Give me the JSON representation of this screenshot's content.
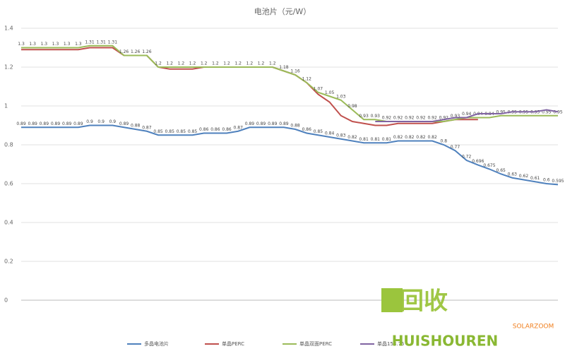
{
  "chart_data": {
    "type": "line",
    "title": "电池片（元/W）",
    "categories": [
      null,
      null,
      null,
      null,
      null,
      null,
      null,
      null,
      null,
      null,
      null,
      null,
      null,
      null,
      null,
      null,
      null,
      null,
      null,
      null,
      null,
      null,
      null,
      null,
      null,
      null,
      null,
      null,
      null,
      null,
      null,
      null,
      null,
      null,
      null,
      null,
      null,
      null,
      null,
      null,
      null,
      null,
      null,
      null,
      null,
      null,
      null,
      null
    ],
    "ylim": [
      0,
      1.4
    ],
    "yticks": [
      0,
      0.2,
      0.4,
      0.6,
      0.8,
      1,
      1.2,
      1.4
    ],
    "grid": true,
    "legend": "bottom",
    "series": [
      {
        "name": "多晶电池片",
        "color": "#4f81bd",
        "show_labels": true,
        "values": [
          0.89,
          0.89,
          0.89,
          0.89,
          0.89,
          0.89,
          0.9,
          0.9,
          0.9,
          0.89,
          0.88,
          0.87,
          0.85,
          0.85,
          0.85,
          0.85,
          0.86,
          0.86,
          0.86,
          0.87,
          0.89,
          0.89,
          0.89,
          0.89,
          0.88,
          0.86,
          0.85,
          0.84,
          0.83,
          0.82,
          0.81,
          0.81,
          0.81,
          0.82,
          0.82,
          0.82,
          0.82,
          0.8,
          0.77,
          0.72,
          0.696,
          0.675,
          0.65,
          0.63,
          0.62,
          0.61,
          0.6,
          0.595
        ]
      },
      {
        "name": "单晶PERC",
        "color": "#c0504d",
        "show_labels": false,
        "values": [
          1.29,
          1.29,
          1.29,
          1.29,
          1.29,
          1.29,
          1.3,
          1.3,
          1.3,
          1.26,
          1.26,
          1.26,
          1.2,
          1.19,
          1.19,
          1.19,
          1.2,
          1.2,
          1.2,
          1.2,
          1.2,
          1.2,
          1.2,
          1.18,
          1.16,
          1.12,
          1.06,
          1.02,
          0.95,
          0.92,
          0.91,
          0.9,
          0.9,
          0.91,
          0.91,
          0.91,
          0.91,
          0.92,
          0.93,
          0.93,
          0.93,
          null,
          null,
          null,
          null,
          null,
          null,
          null
        ]
      },
      {
        "name": "单晶双面PERC",
        "color": "#9bbb59",
        "show_labels": true,
        "values": [
          1.3,
          1.3,
          1.3,
          1.3,
          1.3,
          1.3,
          1.31,
          1.31,
          1.31,
          1.26,
          1.26,
          1.26,
          1.2,
          1.2,
          1.2,
          1.2,
          1.2,
          1.2,
          1.2,
          1.2,
          1.2,
          1.2,
          1.2,
          1.18,
          1.16,
          1.12,
          1.07,
          1.05,
          1.03,
          0.98,
          0.93,
          0.93,
          0.92,
          0.92,
          0.92,
          0.92,
          0.92,
          0.92,
          0.93,
          0.94,
          0.94,
          0.94,
          0.95,
          0.95,
          0.95,
          0.95,
          0.95,
          0.95
        ]
      },
      {
        "name": "单晶158.75",
        "color": "#8064a2",
        "show_labels": false,
        "values": [
          null,
          null,
          null,
          null,
          null,
          null,
          null,
          null,
          null,
          null,
          null,
          null,
          null,
          null,
          null,
          null,
          null,
          null,
          null,
          null,
          null,
          null,
          null,
          null,
          null,
          null,
          null,
          null,
          null,
          null,
          null,
          0.92,
          0.92,
          0.92,
          0.92,
          0.92,
          0.92,
          0.93,
          0.94,
          0.94,
          0.96,
          0.96,
          0.96,
          0.97,
          0.97,
          0.97,
          0.98,
          0.97
        ]
      }
    ]
  },
  "watermark": {
    "logo": "回收",
    "brand": "HUISHOUREN",
    "source": "SOLARZOOM"
  }
}
